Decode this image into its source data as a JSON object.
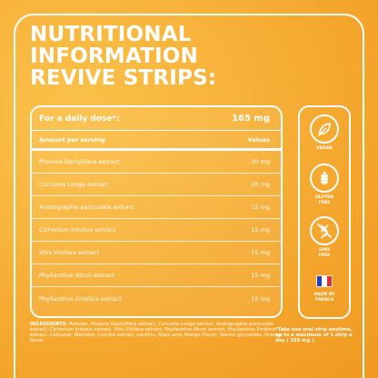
{
  "title": {
    "line1": "NUTRITIONAL",
    "line2": "INFORMATION",
    "line3": "REVIVE STRIPS:"
  },
  "table": {
    "dose_label": "For a daily dose*:",
    "dose_value": "165 mg",
    "col_amount": "Amount per serving",
    "col_values": "Values",
    "rows": [
      {
        "name": "Pheonix Dactylifera extract",
        "value": "20 mg"
      },
      {
        "name": "Curcuma Longa extract",
        "value": "20 mg"
      },
      {
        "name": "Andrographis paniculate extract",
        "value": "15 mg"
      },
      {
        "name": "Cichorium Intybus extract",
        "value": "15 mg"
      },
      {
        "name": "Vitis Vinifera extract",
        "value": "15 mg"
      },
      {
        "name": "Phyllanthus Niruri extract",
        "value": "15 mg"
      },
      {
        "name": "Phyllanthus Emblica extract",
        "value": "15 mg"
      }
    ]
  },
  "badges": {
    "vegan": "VEGAN",
    "gluten": "GLUTEN\nFREE",
    "gmo": "GMO\nFREE",
    "french": "MADE BY\nFRENCH"
  },
  "ingredients": {
    "label": "INGREDIENTS:",
    "text": " Pullulan, Pheonix Dactylifera extract, Curcuma Longa extract, Andrographis paniculate extract, Cichorium Intybus extract, Vitis Vinifera extract, Phyllanthus Niruri extract, Phyllanthus Emblica extract, Cellulose, Mannitol, Licorice extract, Lecithin, Malic acid, Mango Flavor, Steviol glycosides, Orange flavor"
  },
  "note": "*Take one oral strip anytime, up to a maximum of 1 strip a day ( 165 mg ).",
  "colors": {
    "background": "#f7b23a",
    "foreground": "#ffffff",
    "flag_blue": "#1f3fbf",
    "flag_red": "#e2303a"
  }
}
